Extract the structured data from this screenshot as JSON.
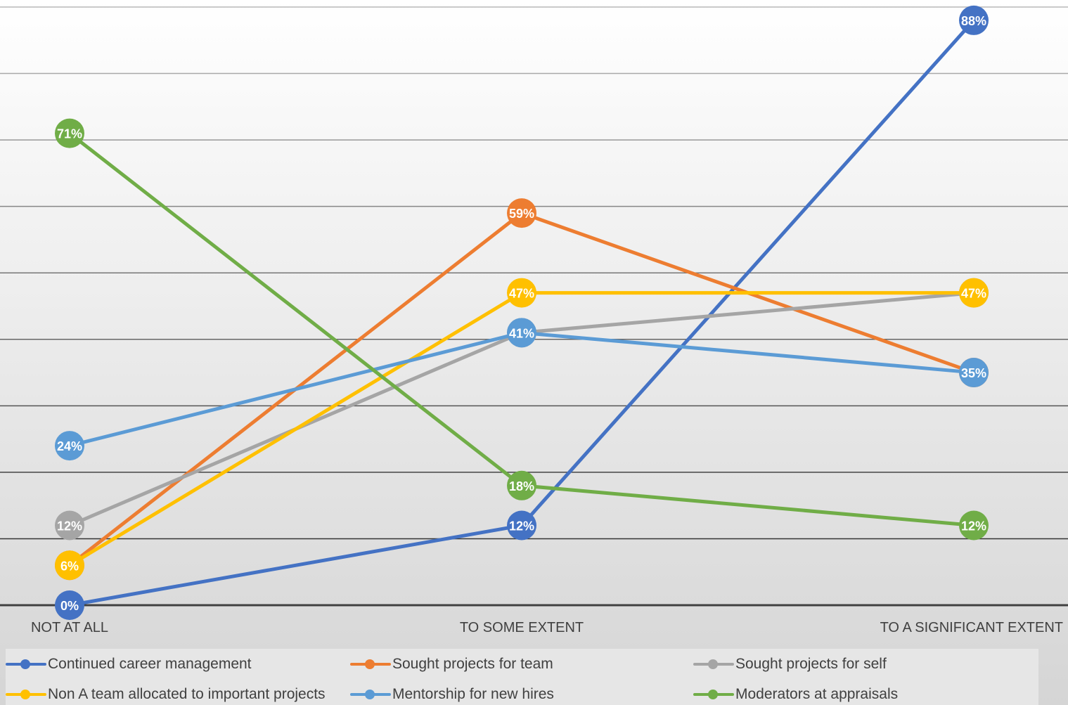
{
  "chart_data": {
    "type": "line",
    "categories": [
      "NOT AT ALL",
      "TO SOME EXTENT",
      "TO A SIGNIFICANT EXTENT"
    ],
    "ylim": [
      0,
      90
    ],
    "grid": true,
    "legend_position": "bottom",
    "series": [
      {
        "name": "Continued career management",
        "color": "#4472C4",
        "values": [
          0,
          12,
          88
        ],
        "labels": [
          "0%",
          "12%",
          "88%"
        ]
      },
      {
        "name": "Sought projects for team",
        "color": "#ED7D31",
        "values": [
          6,
          59,
          35
        ],
        "labels": [
          "",
          "59%",
          ""
        ]
      },
      {
        "name": "Sought projects for self",
        "color": "#A5A5A5",
        "values": [
          12,
          41,
          47
        ],
        "labels": [
          "12%",
          "",
          ""
        ]
      },
      {
        "name": "Non A team allocated to important projects",
        "color": "#FFC000",
        "values": [
          6,
          47,
          47
        ],
        "labels": [
          "6%",
          "47%",
          "47%"
        ]
      },
      {
        "name": "Mentorship for new hires",
        "color": "#5B9BD5",
        "values": [
          24,
          41,
          35
        ],
        "labels": [
          "24%",
          "41%",
          "35%"
        ]
      },
      {
        "name": "Moderators at appraisals",
        "color": "#70AD47",
        "values": [
          71,
          18,
          12
        ],
        "labels": [
          "71%",
          "18%",
          "12%"
        ]
      }
    ]
  }
}
